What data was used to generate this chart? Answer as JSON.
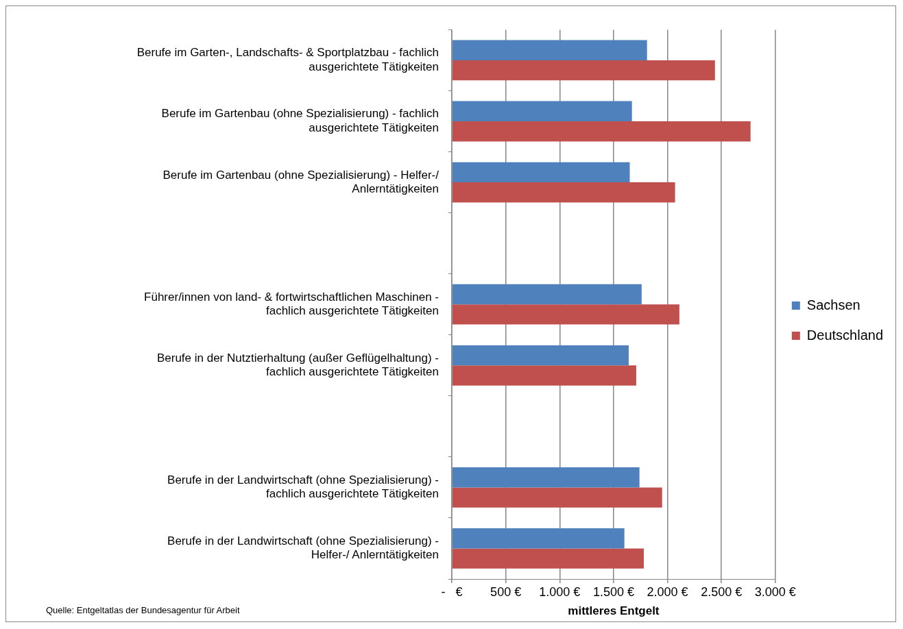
{
  "chart_data": {
    "type": "bar",
    "orientation": "horizontal",
    "categories": [
      "Berufe im Garten-, Landschafts- & Sportplatzbau - fachlich ausgerichtete Tätigkeiten",
      "Berufe im Gartenbau (ohne Spezialisierung) - fachlich ausgerichtete Tätigkeiten",
      "Berufe im Gartenbau (ohne Spezialisierung) - Helfer-/ Anlerntätigkeiten",
      null,
      "Führer/innen von land- & fortwirtschaftlichen Maschinen - fachlich ausgerichtete Tätigkeiten",
      "Berufe in der Nutztierhaltung (außer Geflügelhaltung) - fachlich ausgerichtete Tätigkeiten",
      null,
      "Berufe in der Landwirtschaft (ohne Spezialisierung) - fachlich ausgerichtete Tätigkeiten",
      "Berufe in der Landwirtschaft (ohne Spezialisierung) - Helfer-/ Anlerntätigkeiten"
    ],
    "series": [
      {
        "name": "Sachsen",
        "color": "#4f81bd",
        "values": [
          1810,
          1670,
          1650,
          null,
          1760,
          1640,
          null,
          1740,
          1600
        ]
      },
      {
        "name": "Deutschland",
        "color": "#c0504d",
        "values": [
          2440,
          2770,
          2070,
          null,
          2110,
          1710,
          null,
          1950,
          1780
        ]
      }
    ],
    "xlabel": "mittleres Entgelt",
    "xlim": [
      0,
      3000
    ],
    "xticks": [
      {
        "value": 0,
        "label": "-   €"
      },
      {
        "value": 500,
        "label": "500 €"
      },
      {
        "value": 1000,
        "label": "1.000 €"
      },
      {
        "value": 1500,
        "label": "1.500 €"
      },
      {
        "value": 2000,
        "label": "2.000 €"
      },
      {
        "value": 2500,
        "label": "2.500 €"
      },
      {
        "value": 3000,
        "label": "3.000 €"
      }
    ],
    "grid": "x",
    "legend": "right",
    "annotations": [
      "Quelle: Entgeltatlas der Bundesagentur für Arbeit"
    ]
  }
}
